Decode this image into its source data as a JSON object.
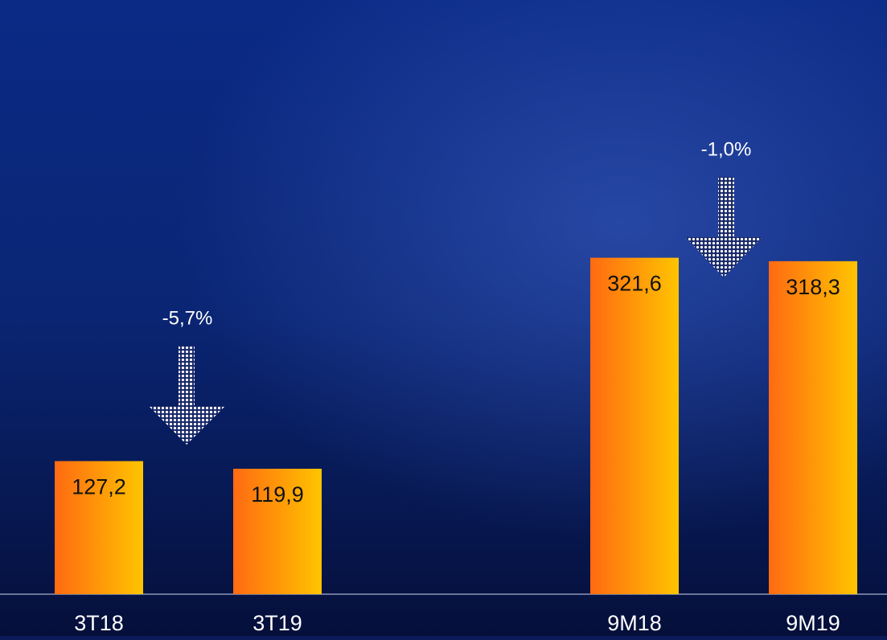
{
  "chart_data": {
    "type": "bar",
    "categories": [
      "3T18",
      "3T19",
      "9M18",
      "9M19"
    ],
    "values": [
      127.2,
      119.9,
      321.6,
      318.3
    ],
    "value_labels": [
      "127,2",
      "119,9",
      "321,6",
      "318,3"
    ],
    "ylim": [
      0,
      568
    ],
    "annotations": [
      {
        "text": "-5,7%"
      },
      {
        "text": "-1,0%"
      }
    ]
  }
}
